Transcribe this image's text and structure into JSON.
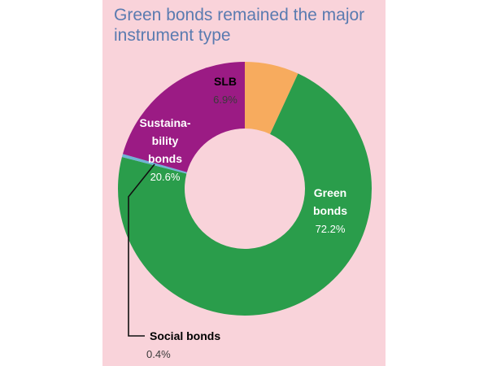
{
  "title": "Green bonds remained the major instrument type",
  "colors": {
    "background": "#f9d3da",
    "title": "#5a7bb0",
    "green": "#2a9d4b",
    "social": "#6fb4d6",
    "sustainability": "#9b1b84",
    "slb": "#f7ab5e"
  },
  "chart_data": {
    "type": "pie",
    "style": "donut",
    "title": "Green bonds remained the major instrument type",
    "slices": [
      {
        "name": "SLB",
        "value": 6.9,
        "value_label": "6.9%",
        "color": "#f7ab5e",
        "label_lines": [
          "SLB"
        ],
        "label_color": "#000000",
        "value_color": "#3a3a3a"
      },
      {
        "name": "Green bonds",
        "value": 72.2,
        "value_label": "72.2%",
        "color": "#2a9d4b",
        "label_lines": [
          "Green",
          "bonds"
        ],
        "label_color": "#ffffff",
        "value_color": "#ffffff"
      },
      {
        "name": "Social bonds",
        "value": 0.4,
        "value_label": "0.4%",
        "color": "#6fb4d6",
        "label_lines": [
          "Social bonds"
        ],
        "label_color": "#000000",
        "value_color": "#3a3a3a"
      },
      {
        "name": "Sustainability bonds",
        "value": 20.6,
        "value_label": "20.6%",
        "color": "#9b1b84",
        "label_lines": [
          "Sustaina-",
          "bility",
          "bonds"
        ],
        "label_color": "#ffffff",
        "value_color": "#ffffff"
      }
    ]
  }
}
